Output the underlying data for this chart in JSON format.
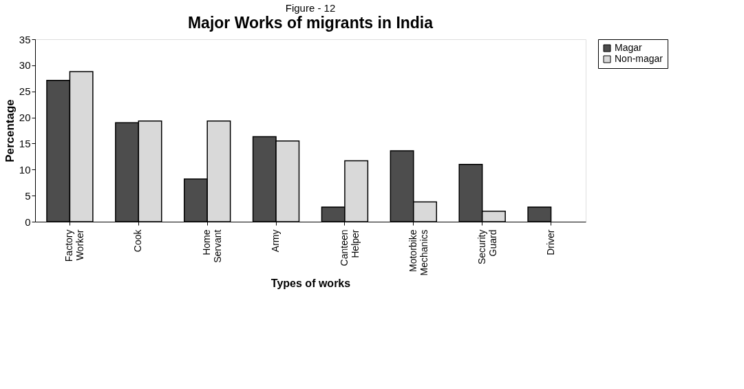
{
  "chart_data": {
    "type": "bar",
    "title": "Major Works of migrants in India",
    "subtitle": "Figure - 12",
    "xlabel": "Types of works",
    "ylabel": "Percentage",
    "categories": [
      "Factory Worker",
      "Cook",
      "Home Servant",
      "Army",
      "Canteen Helper",
      "Motorbike Mechanics",
      "Security Guard",
      "Driver"
    ],
    "series": [
      {
        "name": "Magar",
        "color": "#4d4d4d",
        "values": [
          27.1,
          19.0,
          8.2,
          16.3,
          2.8,
          13.6,
          11.0,
          2.8
        ]
      },
      {
        "name": "Non-magar",
        "color": "#d9d9d9",
        "values": [
          28.8,
          19.3,
          19.3,
          15.5,
          11.7,
          3.8,
          2.0,
          null
        ]
      }
    ],
    "ylim": [
      0,
      35
    ],
    "yticks": [
      0,
      5,
      10,
      15,
      20,
      25,
      30,
      35
    ],
    "grid": false,
    "legend": "right"
  }
}
